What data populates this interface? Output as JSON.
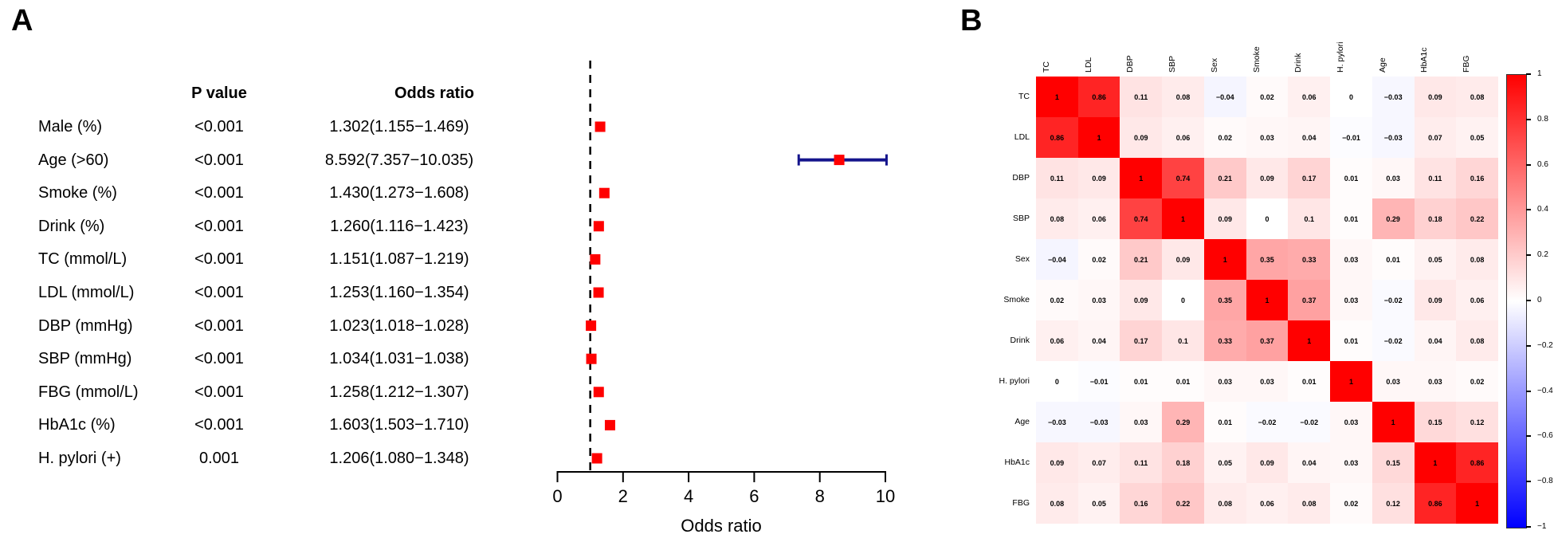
{
  "figure": {
    "panel_a_label": "A",
    "panel_b_label": "B"
  },
  "chart_data": [
    {
      "type": "scatter",
      "subtype": "forest-plot",
      "panel": "A",
      "p_value_header": "P value",
      "odds_ratio_header": "Odds ratio",
      "xlabel": "Odds ratio",
      "x_ticks": [
        0,
        2,
        4,
        6,
        8,
        10
      ],
      "xlim": [
        0,
        10
      ],
      "reference_line_x": 1,
      "marker_color": "#FF0000",
      "ci_color": "#14148C",
      "rows": [
        {
          "label": "Male (%)",
          "p_value": "<0.001",
          "or_text": "1.302(1.155−1.469)",
          "or": 1.302,
          "ci_low": 1.155,
          "ci_high": 1.469
        },
        {
          "label": "Age (>60)",
          "p_value": "<0.001",
          "or_text": "8.592(7.357−10.035)",
          "or": 8.592,
          "ci_low": 7.357,
          "ci_high": 10.035
        },
        {
          "label": "Smoke (%)",
          "p_value": "<0.001",
          "or_text": "1.430(1.273−1.608)",
          "or": 1.43,
          "ci_low": 1.273,
          "ci_high": 1.608
        },
        {
          "label": "Drink (%)",
          "p_value": "<0.001",
          "or_text": "1.260(1.116−1.423)",
          "or": 1.26,
          "ci_low": 1.116,
          "ci_high": 1.423
        },
        {
          "label": "TC (mmol/L)",
          "p_value": "<0.001",
          "or_text": "1.151(1.087−1.219)",
          "or": 1.151,
          "ci_low": 1.087,
          "ci_high": 1.219
        },
        {
          "label": "LDL (mmol/L)",
          "p_value": "<0.001",
          "or_text": "1.253(1.160−1.354)",
          "or": 1.253,
          "ci_low": 1.16,
          "ci_high": 1.354
        },
        {
          "label": "DBP (mmHg)",
          "p_value": "<0.001",
          "or_text": "1.023(1.018−1.028)",
          "or": 1.023,
          "ci_low": 1.018,
          "ci_high": 1.028
        },
        {
          "label": "SBP (mmHg)",
          "p_value": "<0.001",
          "or_text": "1.034(1.031−1.038)",
          "or": 1.034,
          "ci_low": 1.031,
          "ci_high": 1.038
        },
        {
          "label": "FBG (mmol/L)",
          "p_value": "<0.001",
          "or_text": "1.258(1.212−1.307)",
          "or": 1.258,
          "ci_low": 1.212,
          "ci_high": 1.307
        },
        {
          "label": "HbA1c (%)",
          "p_value": "<0.001",
          "or_text": "1.603(1.503−1.710)",
          "or": 1.603,
          "ci_low": 1.503,
          "ci_high": 1.71
        },
        {
          "label": "H. pylori (+)",
          "p_value": "0.001",
          "or_text": "1.206(1.080−1.348)",
          "or": 1.206,
          "ci_low": 1.08,
          "ci_high": 1.348
        }
      ]
    },
    {
      "type": "heatmap",
      "subtype": "correlation-matrix",
      "panel": "B",
      "labels": [
        "TC",
        "LDL",
        "DBP",
        "SBP",
        "Sex",
        "Smoke",
        "Drink",
        "H. pylori",
        "Age",
        "HbA1c",
        "FBG"
      ],
      "matrix": [
        [
          1,
          0.86,
          0.11,
          0.08,
          -0.04,
          0.02,
          0.06,
          0,
          -0.03,
          0.09,
          0.08
        ],
        [
          0.86,
          1,
          0.09,
          0.06,
          0.02,
          0.03,
          0.04,
          -0.01,
          -0.03,
          0.07,
          0.05
        ],
        [
          0.11,
          0.09,
          1,
          0.74,
          0.21,
          0.09,
          0.17,
          0.01,
          0.03,
          0.11,
          0.16
        ],
        [
          0.08,
          0.06,
          0.74,
          1,
          0.09,
          0,
          0.1,
          0.01,
          0.29,
          0.18,
          0.22
        ],
        [
          -0.04,
          0.02,
          0.21,
          0.09,
          1,
          0.35,
          0.33,
          0.03,
          0.01,
          0.05,
          0.08
        ],
        [
          0.02,
          0.03,
          0.09,
          0,
          0.35,
          1,
          0.37,
          0.03,
          -0.02,
          0.09,
          0.06
        ],
        [
          0.06,
          0.04,
          0.17,
          0.1,
          0.33,
          0.37,
          1,
          0.01,
          -0.02,
          0.04,
          0.08
        ],
        [
          0,
          -0.01,
          0.01,
          0.01,
          0.03,
          0.03,
          0.01,
          1,
          0.03,
          0.03,
          0.02
        ],
        [
          -0.03,
          -0.03,
          0.03,
          0.29,
          0.01,
          -0.02,
          -0.02,
          0.03,
          1,
          0.15,
          0.12
        ],
        [
          0.09,
          0.07,
          0.11,
          0.18,
          0.05,
          0.09,
          0.04,
          0.03,
          0.15,
          1,
          0.86
        ],
        [
          0.08,
          0.05,
          0.16,
          0.22,
          0.08,
          0.06,
          0.08,
          0.02,
          0.12,
          0.86,
          1
        ]
      ],
      "colorbar_ticks": [
        1,
        0.8,
        0.6,
        0.4,
        0.2,
        0,
        -0.2,
        -0.4,
        -0.6,
        -0.8,
        -1
      ],
      "value_range": [
        -1,
        1
      ],
      "color_positive": "#FF0000",
      "color_zero": "#FFFFFF",
      "color_negative": "#0000FF"
    }
  ]
}
